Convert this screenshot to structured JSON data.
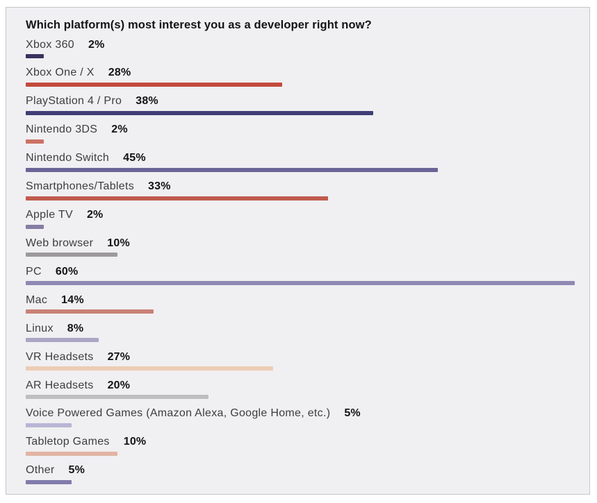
{
  "chart_data": {
    "type": "bar",
    "title": "Which platform(s) most interest you as a developer right now?",
    "orientation": "horizontal",
    "unit": "%",
    "xlim": [
      0,
      60
    ],
    "categories": [
      "Xbox 360",
      "Xbox One / X",
      "PlayStation 4 / Pro",
      "Nintendo 3DS",
      "Nintendo Switch",
      "Smartphones/Tablets",
      "Apple TV",
      "Web browser",
      "PC",
      "Mac",
      "Linux",
      "VR Headsets",
      "AR Headsets",
      "Voice Powered Games (Amazon Alexa, Google Home, etc.)",
      "Tabletop Games",
      "Other"
    ],
    "values": [
      2,
      28,
      38,
      2,
      45,
      33,
      2,
      10,
      60,
      14,
      8,
      27,
      20,
      5,
      10,
      5
    ],
    "value_labels": [
      "2%",
      "28%",
      "38%",
      "2%",
      "45%",
      "33%",
      "2%",
      "10%",
      "60%",
      "14%",
      "8%",
      "27%",
      "20%",
      "5%",
      "10%",
      "5%"
    ],
    "bar_colors": [
      "#38325f",
      "#c24a3d",
      "#403d77",
      "#cb7265",
      "#6b6597",
      "#c05b4d",
      "#857da3",
      "#9c9a9d",
      "#8e88b4",
      "#ca8176",
      "#aaa6c3",
      "#ecccb5",
      "#bfbebf",
      "#b9b5d5",
      "#e2b4a3",
      "#817bab"
    ],
    "background_color": "#f0eff2",
    "label_color": "#3d3d3d",
    "value_color": "#141414"
  }
}
